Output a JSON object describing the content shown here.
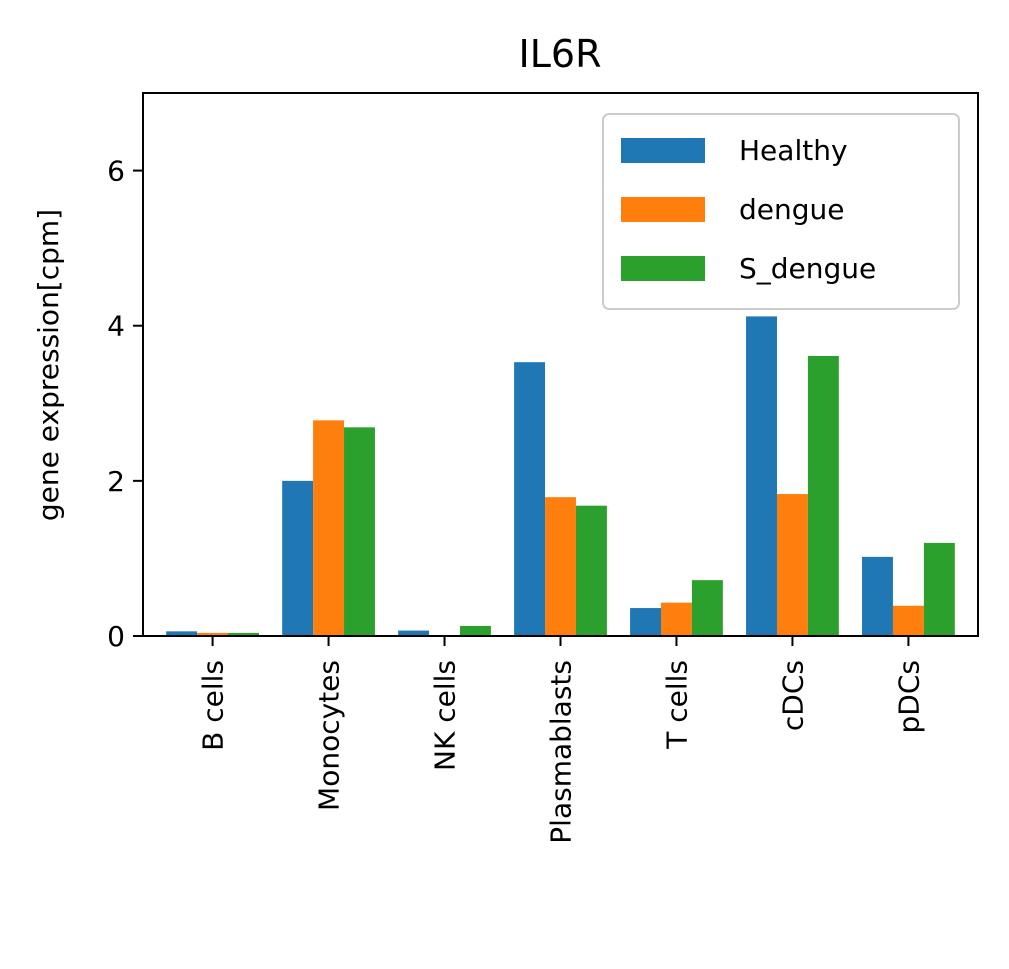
{
  "chart_data": {
    "type": "bar",
    "title": "IL6R",
    "xlabel": "",
    "ylabel": "gene expression[cpm]",
    "ylim": [
      0,
      7
    ],
    "yticks": [
      0,
      2,
      4,
      6
    ],
    "categories": [
      "B cells",
      "Monocytes",
      "NK cells",
      "Plasmablasts",
      "T cells",
      "cDCs",
      "pDCs"
    ],
    "series": [
      {
        "name": "Healthy",
        "color": "#1f77b4",
        "values": [
          0.06,
          2.0,
          0.07,
          3.53,
          0.36,
          4.12,
          1.02
        ]
      },
      {
        "name": "dengue",
        "color": "#ff7f0e",
        "values": [
          0.04,
          2.78,
          0.0,
          1.79,
          0.43,
          1.83,
          0.39
        ]
      },
      {
        "name": "S_dengue",
        "color": "#2ca02c",
        "values": [
          0.04,
          2.69,
          0.13,
          1.68,
          0.72,
          3.61,
          1.2
        ]
      }
    ],
    "grid": false,
    "legend": "top-right"
  }
}
